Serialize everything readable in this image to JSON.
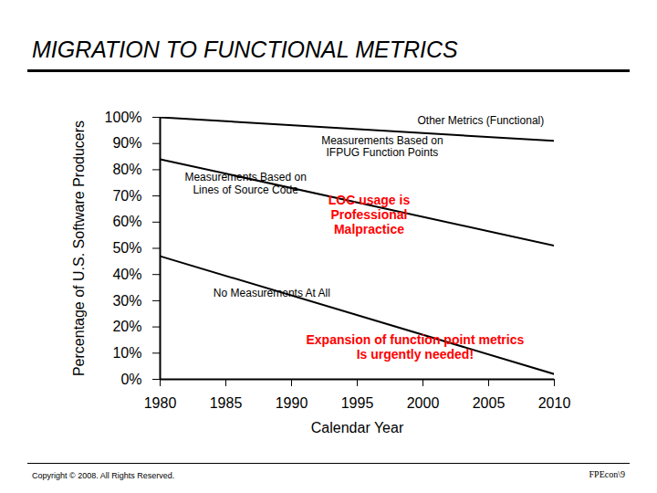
{
  "chart_data": {
    "type": "line",
    "title": "MIGRATION TO FUNCTIONAL METRICS",
    "x_label": "Calendar Year",
    "y_label": "Percentage of U.S. Software Producers",
    "x": [
      1980,
      2010
    ],
    "series": [
      {
        "color": "#000000",
        "values": [
          100,
          91
        ]
      },
      {
        "color": "#000000",
        "values": [
          84,
          51
        ]
      },
      {
        "color": "#000000",
        "values": [
          47,
          2
        ]
      }
    ],
    "xlim": [
      1980,
      2010
    ],
    "xticks": [
      1980,
      1985,
      1990,
      1995,
      2000,
      2005,
      2010
    ],
    "ylim": [
      0,
      100
    ],
    "yticks": [
      {
        "value": 0,
        "label": "0%"
      },
      {
        "value": 10,
        "label": "10%"
      },
      {
        "value": 20,
        "label": "20%"
      },
      {
        "value": 30,
        "label": "30%"
      },
      {
        "value": 40,
        "label": "40%"
      },
      {
        "value": 50,
        "label": "50%"
      },
      {
        "value": 60,
        "label": "60%"
      },
      {
        "value": 70,
        "label": "70%"
      },
      {
        "value": 80,
        "label": "80%"
      },
      {
        "value": 90,
        "label": "90%"
      },
      {
        "value": 100,
        "label": "100%"
      }
    ],
    "grid": false,
    "annotations": [
      {
        "text": "Other Metrics (Functional)",
        "x": 2004.4,
        "y": 99,
        "color": "#000000"
      },
      {
        "text": "Measurements Based on\nIFPUG Function Points",
        "x": 1996.9,
        "y": 89,
        "color": "#000000"
      },
      {
        "text": "Measurements Based on\nLines of Source Code",
        "x": 1986.5,
        "y": 75,
        "color": "#000000"
      },
      {
        "text": "LOC usage is\nProfessional\nMalpractice",
        "x": 1995.9,
        "y": 63,
        "color": "#ff0000"
      },
      {
        "text": "No Measurements At All",
        "x": 1988.5,
        "y": 33,
        "color": "#000000"
      },
      {
        "text": "Expansion of function point metrics\nIs urgently needed!",
        "x": 1999.4,
        "y": 12.5,
        "color": "#ff0000"
      }
    ],
    "copyright": "Copyright © 2008. All Rights Reserved.",
    "slide_id": "FPEcon\\9"
  }
}
